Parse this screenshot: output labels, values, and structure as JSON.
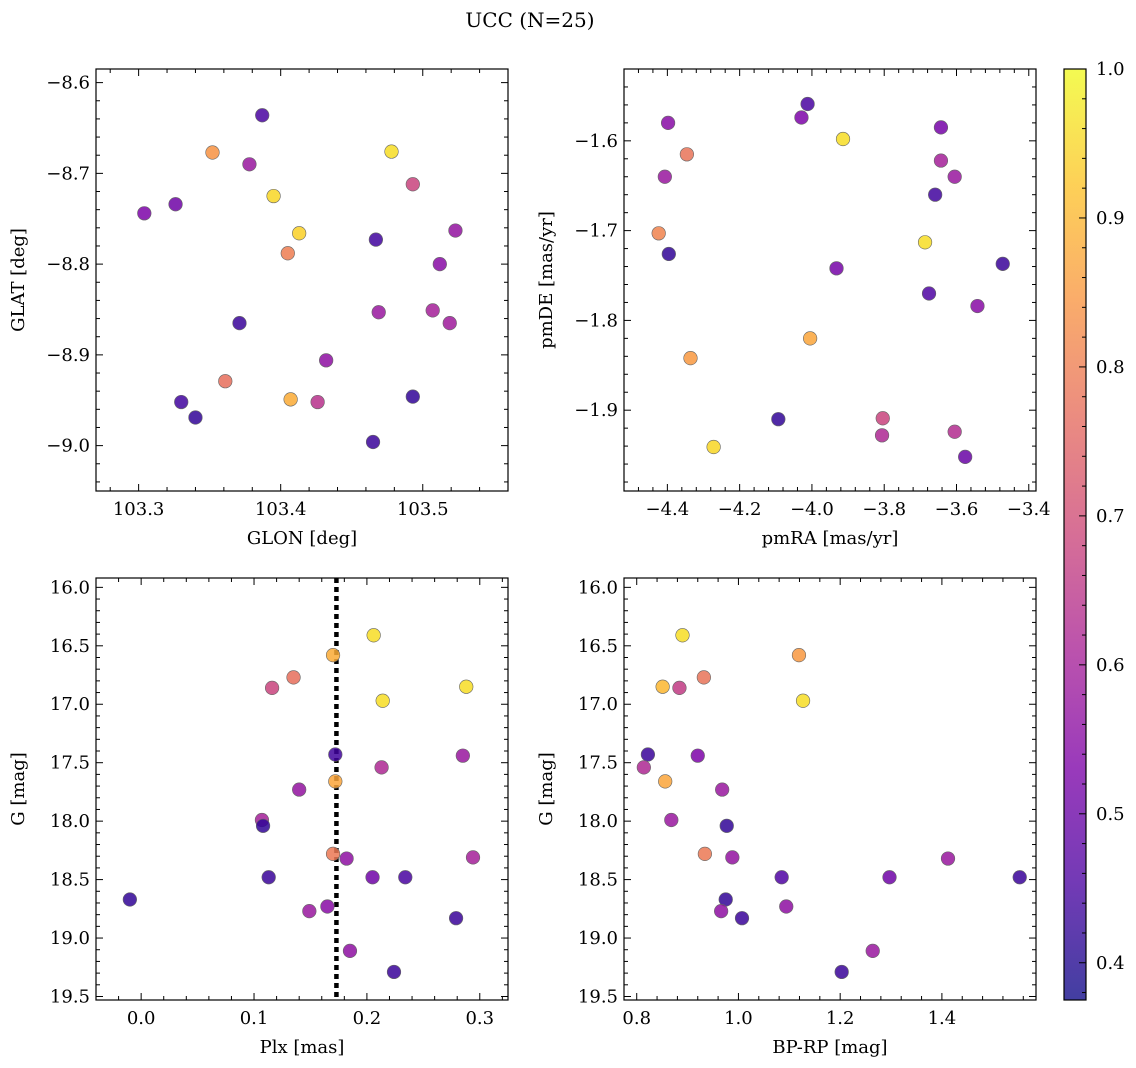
{
  "chart_data": {
    "type": "scatter",
    "title": "UCC (N=25)",
    "colorbar": {
      "colormap": "plasma",
      "range": [
        0.375,
        1.0
      ],
      "tick_labels": [
        "0.4",
        "0.5",
        "0.6",
        "0.7",
        "0.8",
        "0.9",
        "1.0"
      ],
      "ticks": [
        0.4,
        0.5,
        0.6,
        0.7,
        0.8,
        0.9,
        1.0
      ]
    },
    "panels": [
      {
        "id": "glon-glat",
        "xlabel": "GLON [deg]",
        "ylabel": "GLAT [deg]",
        "xlim": [
          103.27,
          103.56
        ],
        "ylim": [
          -9.05,
          -8.585
        ],
        "y_inverted": false,
        "xticks": [
          103.3,
          103.4,
          103.5
        ],
        "xtick_labels": [
          "103.3",
          "103.4",
          "103.5"
        ],
        "yticks": [
          -8.6,
          -8.7,
          -8.8,
          -8.9,
          -9.0
        ],
        "ytick_labels": [
          "−8.6",
          "−8.7",
          "−8.8",
          "−8.9",
          "−9.0"
        ],
        "points": [
          {
            "x": 103.387,
            "y": -8.636,
            "c": 0.45
          },
          {
            "x": 103.352,
            "y": -8.677,
            "c": 0.84
          },
          {
            "x": 103.378,
            "y": -8.69,
            "c": 0.58
          },
          {
            "x": 103.478,
            "y": -8.676,
            "c": 0.96
          },
          {
            "x": 103.493,
            "y": -8.712,
            "c": 0.68
          },
          {
            "x": 103.395,
            "y": -8.725,
            "c": 0.95
          },
          {
            "x": 103.304,
            "y": -8.744,
            "c": 0.53
          },
          {
            "x": 103.326,
            "y": -8.734,
            "c": 0.51
          },
          {
            "x": 103.413,
            "y": -8.766,
            "c": 0.94
          },
          {
            "x": 103.405,
            "y": -8.788,
            "c": 0.8
          },
          {
            "x": 103.467,
            "y": -8.773,
            "c": 0.44
          },
          {
            "x": 103.523,
            "y": -8.763,
            "c": 0.57
          },
          {
            "x": 103.512,
            "y": -8.8,
            "c": 0.55
          },
          {
            "x": 103.469,
            "y": -8.853,
            "c": 0.58
          },
          {
            "x": 103.507,
            "y": -8.851,
            "c": 0.6
          },
          {
            "x": 103.519,
            "y": -8.865,
            "c": 0.59
          },
          {
            "x": 103.371,
            "y": -8.865,
            "c": 0.43
          },
          {
            "x": 103.432,
            "y": -8.906,
            "c": 0.56
          },
          {
            "x": 103.361,
            "y": -8.929,
            "c": 0.77
          },
          {
            "x": 103.407,
            "y": -8.949,
            "c": 0.88
          },
          {
            "x": 103.426,
            "y": -8.952,
            "c": 0.64
          },
          {
            "x": 103.33,
            "y": -8.952,
            "c": 0.44
          },
          {
            "x": 103.34,
            "y": -8.969,
            "c": 0.42
          },
          {
            "x": 103.493,
            "y": -8.946,
            "c": 0.42
          },
          {
            "x": 103.465,
            "y": -8.996,
            "c": 0.43
          }
        ]
      },
      {
        "id": "pmra-pmde",
        "xlabel": "pmRA [mas/yr]",
        "ylabel": "pmDE [mas/yr]",
        "xlim": [
          -4.52,
          -3.38
        ],
        "ylim": [
          -1.99,
          -1.52
        ],
        "y_inverted": false,
        "xticks": [
          -4.4,
          -4.2,
          -4.0,
          -3.8,
          -3.6,
          -3.4
        ],
        "xtick_labels": [
          "−4.4",
          "−4.2",
          "−4.0",
          "−3.8",
          "−3.6",
          "−3.4"
        ],
        "yticks": [
          -1.6,
          -1.7,
          -1.8,
          -1.9
        ],
        "ytick_labels": [
          "−1.6",
          "−1.7",
          "−1.8",
          "−1.9"
        ],
        "points": [
          {
            "x": -4.012,
            "y": -1.559,
            "c": 0.45
          },
          {
            "x": -4.029,
            "y": -1.574,
            "c": 0.53
          },
          {
            "x": -3.914,
            "y": -1.598,
            "c": 0.96
          },
          {
            "x": -4.398,
            "y": -1.58,
            "c": 0.55
          },
          {
            "x": -4.346,
            "y": -1.615,
            "c": 0.78
          },
          {
            "x": -3.643,
            "y": -1.585,
            "c": 0.52
          },
          {
            "x": -3.643,
            "y": -1.622,
            "c": 0.6
          },
          {
            "x": -3.605,
            "y": -1.64,
            "c": 0.58
          },
          {
            "x": -4.407,
            "y": -1.64,
            "c": 0.58
          },
          {
            "x": -3.659,
            "y": -1.66,
            "c": 0.44
          },
          {
            "x": -4.424,
            "y": -1.703,
            "c": 0.81
          },
          {
            "x": -3.687,
            "y": -1.713,
            "c": 0.96
          },
          {
            "x": -4.396,
            "y": -1.726,
            "c": 0.42
          },
          {
            "x": -3.472,
            "y": -1.737,
            "c": 0.43
          },
          {
            "x": -3.932,
            "y": -1.742,
            "c": 0.52
          },
          {
            "x": -3.676,
            "y": -1.77,
            "c": 0.46
          },
          {
            "x": -3.542,
            "y": -1.784,
            "c": 0.55
          },
          {
            "x": -4.005,
            "y": -1.82,
            "c": 0.87
          },
          {
            "x": -4.336,
            "y": -1.842,
            "c": 0.85
          },
          {
            "x": -4.093,
            "y": -1.91,
            "c": 0.42
          },
          {
            "x": -3.804,
            "y": -1.909,
            "c": 0.68
          },
          {
            "x": -3.806,
            "y": -1.928,
            "c": 0.62
          },
          {
            "x": -3.605,
            "y": -1.924,
            "c": 0.63
          },
          {
            "x": -4.272,
            "y": -1.941,
            "c": 0.95
          },
          {
            "x": -3.576,
            "y": -1.952,
            "c": 0.5
          }
        ]
      },
      {
        "id": "plx-g",
        "xlabel": "Plx [mas]",
        "ylabel": "G [mag]",
        "xlim": [
          -0.04,
          0.325
        ],
        "ylim": [
          19.53,
          15.92
        ],
        "y_inverted": true,
        "vline": 0.173,
        "xticks": [
          0.0,
          0.1,
          0.2,
          0.3
        ],
        "xtick_labels": [
          "0.0",
          "0.1",
          "0.2",
          "0.3"
        ],
        "yticks": [
          16.0,
          16.5,
          17.0,
          17.5,
          18.0,
          18.5,
          19.0,
          19.5
        ],
        "ytick_labels": [
          "16.0",
          "16.5",
          "17.0",
          "17.5",
          "18.0",
          "18.5",
          "19.0",
          "19.5"
        ],
        "points": [
          {
            "x": 0.206,
            "y": 16.41,
            "c": 0.96
          },
          {
            "x": 0.17,
            "y": 16.58,
            "c": 0.88
          },
          {
            "x": 0.135,
            "y": 16.77,
            "c": 0.77
          },
          {
            "x": 0.116,
            "y": 16.86,
            "c": 0.68
          },
          {
            "x": 0.288,
            "y": 16.85,
            "c": 0.96
          },
          {
            "x": 0.214,
            "y": 16.97,
            "c": 0.96
          },
          {
            "x": 0.172,
            "y": 17.43,
            "c": 0.44
          },
          {
            "x": 0.285,
            "y": 17.44,
            "c": 0.58
          },
          {
            "x": 0.172,
            "y": 17.66,
            "c": 0.87
          },
          {
            "x": 0.213,
            "y": 17.54,
            "c": 0.62
          },
          {
            "x": 0.14,
            "y": 17.73,
            "c": 0.57
          },
          {
            "x": 0.107,
            "y": 17.99,
            "c": 0.6
          },
          {
            "x": 0.108,
            "y": 18.04,
            "c": 0.42
          },
          {
            "x": 0.17,
            "y": 18.28,
            "c": 0.79
          },
          {
            "x": 0.182,
            "y": 18.32,
            "c": 0.56
          },
          {
            "x": 0.294,
            "y": 18.31,
            "c": 0.6
          },
          {
            "x": 0.113,
            "y": 18.48,
            "c": 0.43
          },
          {
            "x": 0.205,
            "y": 18.48,
            "c": 0.51
          },
          {
            "x": 0.234,
            "y": 18.48,
            "c": 0.45
          },
          {
            "x": -0.01,
            "y": 18.67,
            "c": 0.42
          },
          {
            "x": 0.149,
            "y": 18.77,
            "c": 0.58
          },
          {
            "x": 0.165,
            "y": 18.73,
            "c": 0.55
          },
          {
            "x": 0.279,
            "y": 18.83,
            "c": 0.43
          },
          {
            "x": 0.185,
            "y": 19.11,
            "c": 0.56
          },
          {
            "x": 0.224,
            "y": 19.29,
            "c": 0.43
          }
        ]
      },
      {
        "id": "bprp-g",
        "xlabel": "BP-RP [mag]",
        "ylabel": "G [mag]",
        "xlim": [
          0.775,
          1.585
        ],
        "ylim": [
          19.53,
          15.92
        ],
        "y_inverted": true,
        "xticks": [
          0.8,
          1.0,
          1.2,
          1.4
        ],
        "xtick_labels": [
          "0.8",
          "1.0",
          "1.2",
          "1.4"
        ],
        "yticks": [
          16.0,
          16.5,
          17.0,
          17.5,
          18.0,
          18.5,
          19.0,
          19.5
        ],
        "ytick_labels": [
          "16.0",
          "16.5",
          "17.0",
          "17.5",
          "18.0",
          "18.5",
          "19.0",
          "19.5"
        ],
        "points": [
          {
            "x": 0.89,
            "y": 16.41,
            "c": 0.96
          },
          {
            "x": 1.119,
            "y": 16.58,
            "c": 0.85
          },
          {
            "x": 0.932,
            "y": 16.77,
            "c": 0.78
          },
          {
            "x": 0.851,
            "y": 16.85,
            "c": 0.9
          },
          {
            "x": 0.884,
            "y": 16.86,
            "c": 0.66
          },
          {
            "x": 1.127,
            "y": 16.97,
            "c": 0.96
          },
          {
            "x": 0.822,
            "y": 17.43,
            "c": 0.43
          },
          {
            "x": 0.92,
            "y": 17.44,
            "c": 0.53
          },
          {
            "x": 0.814,
            "y": 17.54,
            "c": 0.62
          },
          {
            "x": 0.856,
            "y": 17.66,
            "c": 0.87
          },
          {
            "x": 0.968,
            "y": 17.73,
            "c": 0.58
          },
          {
            "x": 0.868,
            "y": 17.99,
            "c": 0.58
          },
          {
            "x": 0.977,
            "y": 18.04,
            "c": 0.42
          },
          {
            "x": 0.934,
            "y": 18.28,
            "c": 0.79
          },
          {
            "x": 0.988,
            "y": 18.31,
            "c": 0.57
          },
          {
            "x": 1.412,
            "y": 18.32,
            "c": 0.58
          },
          {
            "x": 1.085,
            "y": 18.48,
            "c": 0.46
          },
          {
            "x": 1.297,
            "y": 18.48,
            "c": 0.51
          },
          {
            "x": 1.553,
            "y": 18.48,
            "c": 0.43
          },
          {
            "x": 0.975,
            "y": 18.67,
            "c": 0.42
          },
          {
            "x": 1.094,
            "y": 18.73,
            "c": 0.56
          },
          {
            "x": 0.966,
            "y": 18.77,
            "c": 0.56
          },
          {
            "x": 1.007,
            "y": 18.83,
            "c": 0.43
          },
          {
            "x": 1.264,
            "y": 19.11,
            "c": 0.58
          },
          {
            "x": 1.203,
            "y": 19.29,
            "c": 0.43
          }
        ]
      }
    ]
  }
}
